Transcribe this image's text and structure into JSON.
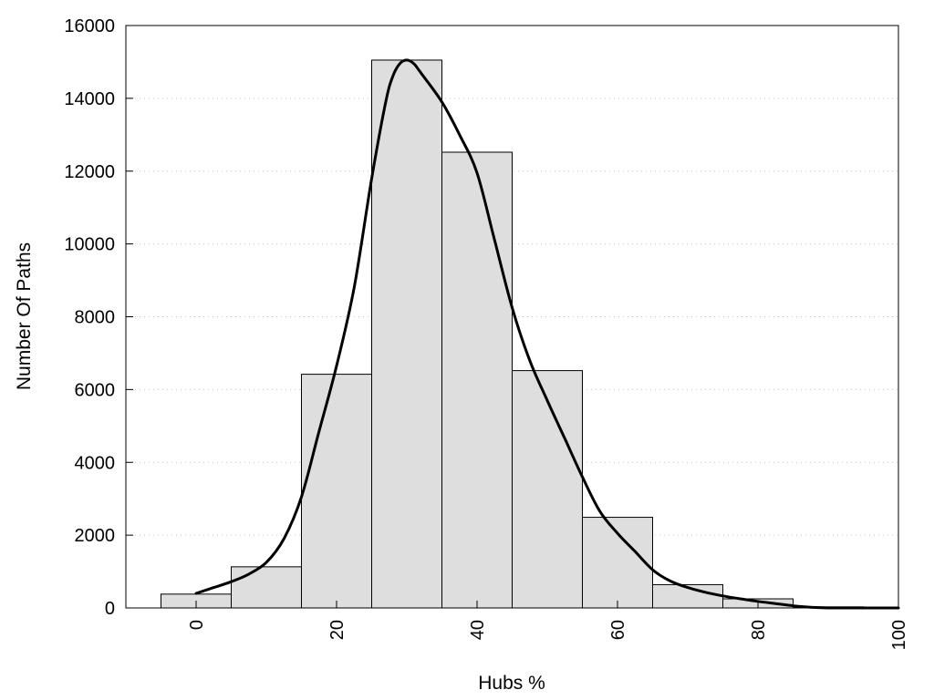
{
  "chart_data": {
    "type": "bar",
    "title": "",
    "xlabel": "Hubs %",
    "ylabel": "Number Of Paths",
    "xlim": [
      -10,
      100
    ],
    "ylim": [
      0,
      16000
    ],
    "x_ticks": [
      0,
      20,
      40,
      60,
      80,
      100
    ],
    "y_ticks": [
      0,
      2000,
      4000,
      6000,
      8000,
      10000,
      12000,
      14000,
      16000
    ],
    "grid": "horizontal dotted",
    "bin_width": 10,
    "bins": [
      {
        "center": 0,
        "value": 380
      },
      {
        "center": 10,
        "value": 1130
      },
      {
        "center": 20,
        "value": 6420
      },
      {
        "center": 30,
        "value": 15050
      },
      {
        "center": 40,
        "value": 12520
      },
      {
        "center": 50,
        "value": 6520
      },
      {
        "center": 60,
        "value": 2490
      },
      {
        "center": 70,
        "value": 640
      },
      {
        "center": 80,
        "value": 250
      },
      {
        "center": 90,
        "value": 30
      }
    ],
    "density_curve": {
      "x": [
        0,
        2.5,
        5,
        7.5,
        10,
        12.5,
        15,
        17.5,
        20,
        22.5,
        25,
        27,
        28,
        29,
        30,
        31,
        32,
        35,
        37.5,
        40,
        42.5,
        45,
        47.5,
        50,
        52.5,
        55,
        57.5,
        60,
        62.5,
        65,
        67.5,
        70,
        72.5,
        75,
        77.5,
        80,
        82.5,
        85,
        87.5,
        90,
        95,
        100
      ],
      "y": [
        400,
        560,
        720,
        930,
        1250,
        1900,
        3050,
        4850,
        6650,
        8800,
        11800,
        13900,
        14600,
        14950,
        15050,
        14950,
        14700,
        13900,
        13000,
        11950,
        10100,
        8250,
        6800,
        5700,
        4650,
        3600,
        2650,
        2050,
        1550,
        1050,
        740,
        560,
        430,
        330,
        250,
        180,
        120,
        60,
        20,
        0,
        0,
        0
      ]
    },
    "series_color": "#dedede",
    "curve_color": "#000000"
  }
}
